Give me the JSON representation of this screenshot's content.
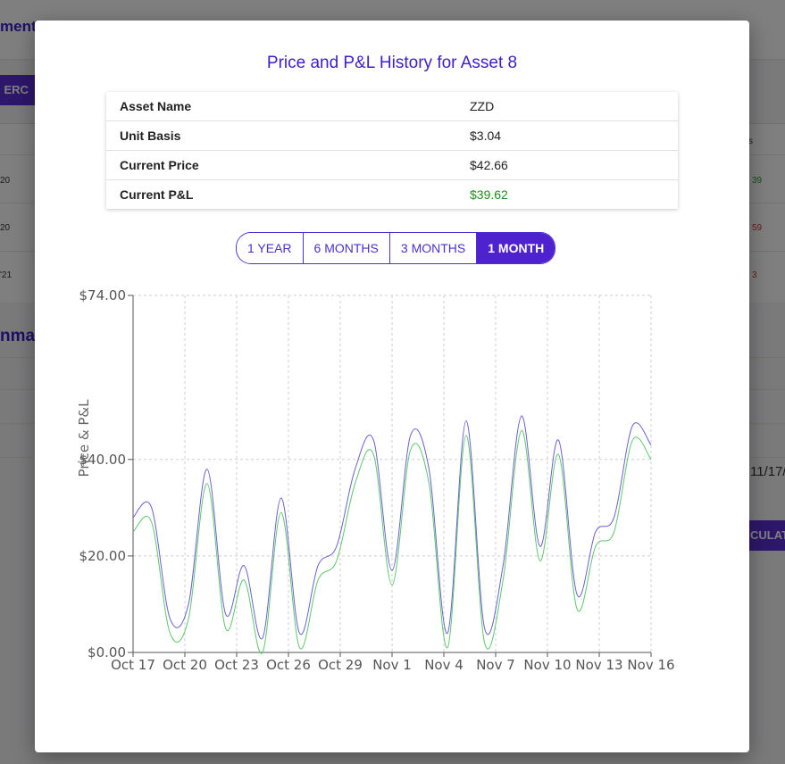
{
  "background": {
    "header_title": "ment",
    "left_button_label": "M ERC",
    "table_rows": [
      {
        "left": "20",
        "right": "39",
        "right_status": "pos"
      },
      {
        "left": "20",
        "right": "59",
        "right_status": "neg"
      },
      {
        "left": "'21",
        "right": "3",
        "right_status": "neg"
      }
    ],
    "header_cell": "s",
    "summary_heading": "nma",
    "date_text": "11/17/",
    "right_button_label": "CULAT"
  },
  "modal": {
    "title": "Price and P&L History for Asset 8",
    "info_rows": [
      {
        "label": "Asset Name",
        "value": "ZZD"
      },
      {
        "label": "Unit Basis",
        "value": "$3.04"
      },
      {
        "label": "Current Price",
        "value": "$42.66"
      },
      {
        "label": "Current P&L",
        "value": "$39.62"
      }
    ],
    "range_buttons": [
      "1 YEAR",
      "6 MONTHS",
      "3 MONTHS",
      "1 MONTH"
    ],
    "active_range": "1 MONTH"
  },
  "colors": {
    "accent": "#4f22d0",
    "price_line": "#6b5fd6",
    "pnl_line": "#5cc86a",
    "pnl_positive": "#1e8c1e"
  },
  "chart_data": {
    "type": "line",
    "title": "",
    "xlabel": "",
    "ylabel": "Price & P&L",
    "ylim": [
      0,
      74
    ],
    "y_ticks": [
      0,
      20,
      40,
      74
    ],
    "y_tick_labels": [
      "$0.00",
      "$20.00",
      "$40.00",
      "$74.00"
    ],
    "x_tick_labels": [
      "Oct 17",
      "Oct 20",
      "Oct 23",
      "Oct 26",
      "Oct 29",
      "Nov 1",
      "Nov 4",
      "Nov 7",
      "Nov 10",
      "Nov 13",
      "Nov 16"
    ],
    "grid": true,
    "series": [
      {
        "name": "Price",
        "values": [
          28,
          30,
          7,
          10,
          38,
          8,
          18,
          3,
          32,
          4,
          18,
          22,
          38,
          44,
          17,
          45,
          38,
          4,
          48,
          5,
          18,
          49,
          22,
          44,
          12,
          25,
          28,
          47,
          43
        ]
      },
      {
        "name": "P&L",
        "values": [
          25,
          27,
          4,
          7,
          35,
          5,
          15,
          0,
          29,
          1,
          15,
          19,
          35,
          41,
          14,
          42,
          35,
          1,
          45,
          2,
          15,
          46,
          19,
          41,
          9,
          22,
          25,
          44,
          40
        ]
      }
    ]
  }
}
